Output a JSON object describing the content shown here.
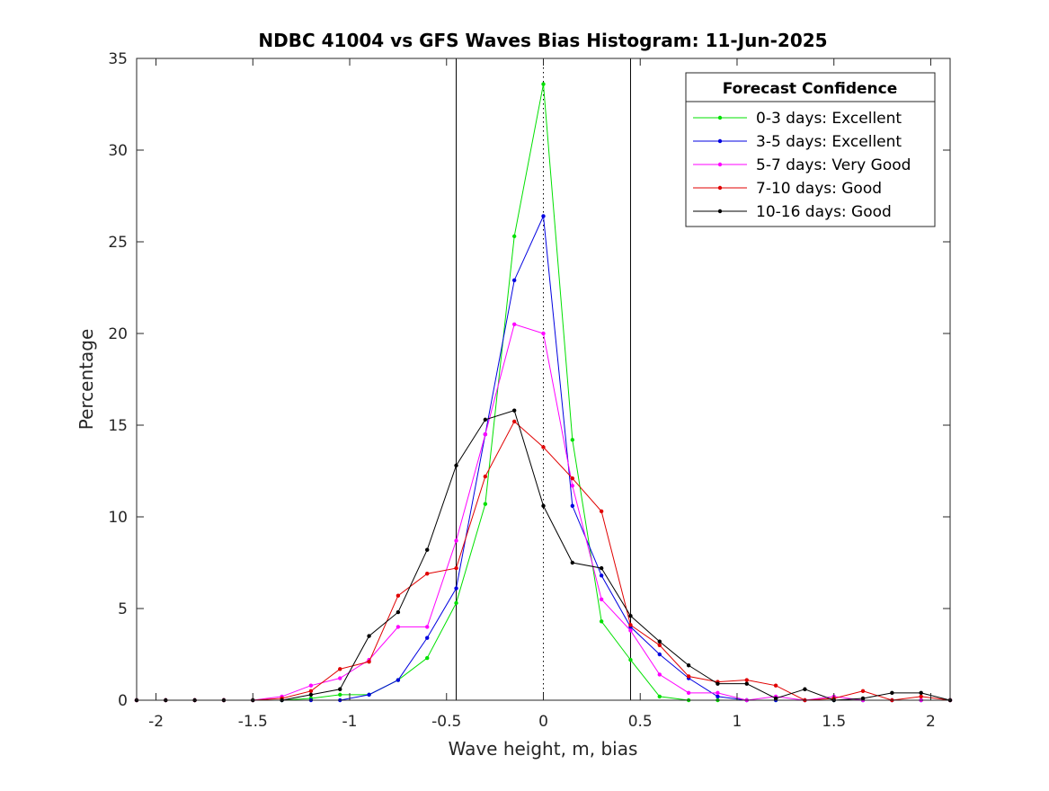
{
  "chart_data": {
    "type": "line",
    "title": "NDBC 41004 vs GFS Waves Bias Histogram: 11-Jun-2025",
    "xlabel": "Wave height, m, bias",
    "ylabel": "Percentage",
    "xlim": [
      -2.1,
      2.1
    ],
    "ylim": [
      0,
      35
    ],
    "xticks": [
      -2,
      -1.5,
      -1,
      -0.5,
      0,
      0.5,
      1,
      1.5,
      2
    ],
    "xtick_labels": [
      "-2",
      "-1.5",
      "-1",
      "-0.5",
      "0",
      "0.5",
      "1",
      "1.5",
      "2"
    ],
    "yticks": [
      0,
      5,
      10,
      15,
      20,
      25,
      30,
      35
    ],
    "ytick_labels": [
      "0",
      "5",
      "10",
      "15",
      "20",
      "25",
      "30",
      "35"
    ],
    "grid": false,
    "reference_lines": {
      "solid_x": [
        -0.45,
        0.45
      ],
      "dotted_x": [
        0
      ]
    },
    "legend": {
      "title": "Forecast Confidence",
      "placement": "top-right"
    },
    "x": [
      -2.1,
      -1.95,
      -1.8,
      -1.65,
      -1.5,
      -1.35,
      -1.2,
      -1.05,
      -0.9,
      -0.75,
      -0.6,
      -0.45,
      -0.3,
      -0.15,
      0,
      0.15,
      0.3,
      0.45,
      0.6,
      0.75,
      0.9,
      1.05,
      1.2,
      1.35,
      1.5,
      1.65,
      1.8,
      1.95,
      2.1
    ],
    "series": [
      {
        "name": "0-3 days: Excellent",
        "color": "#00e000",
        "values": [
          0,
          0,
          0,
          0,
          0,
          0,
          0.1,
          0.3,
          0.3,
          1.1,
          2.3,
          5.3,
          10.7,
          25.3,
          33.6,
          14.2,
          4.3,
          2.2,
          0.2,
          0,
          0,
          0,
          0,
          0,
          0,
          0,
          0,
          0,
          0
        ]
      },
      {
        "name": "3-5 days: Excellent",
        "color": "#0000e0",
        "values": [
          0,
          0,
          0,
          0,
          0,
          0,
          0,
          0,
          0.3,
          1.1,
          3.4,
          6.1,
          14.5,
          22.9,
          26.4,
          10.6,
          6.8,
          4.0,
          2.5,
          1.2,
          0.2,
          0,
          0,
          0,
          0,
          0,
          0,
          0,
          0
        ]
      },
      {
        "name": "5-7 days: Very Good",
        "color": "#ff00ff",
        "values": [
          0,
          0,
          0,
          0,
          0,
          0.2,
          0.8,
          1.2,
          2.2,
          4.0,
          4.0,
          8.7,
          14.5,
          20.5,
          20.0,
          11.7,
          5.5,
          3.8,
          1.4,
          0.4,
          0.4,
          0,
          0.2,
          0,
          0.2,
          0,
          0,
          0,
          0
        ]
      },
      {
        "name": "7-10 days: Good",
        "color": "#e00000",
        "values": [
          0,
          0,
          0,
          0,
          0,
          0.1,
          0.5,
          1.7,
          2.1,
          5.7,
          6.9,
          7.2,
          12.2,
          15.2,
          13.8,
          12.1,
          10.3,
          4.1,
          3.0,
          1.3,
          1.0,
          1.1,
          0.8,
          0,
          0.1,
          0.5,
          0,
          0.2,
          0
        ]
      },
      {
        "name": "10-16 days: Good",
        "color": "#000000",
        "values": [
          0,
          0,
          0,
          0,
          0,
          0,
          0.3,
          0.6,
          3.5,
          4.8,
          8.2,
          12.8,
          15.3,
          15.8,
          10.6,
          7.5,
          7.2,
          4.6,
          3.2,
          1.9,
          0.9,
          0.9,
          0.1,
          0.6,
          0,
          0.1,
          0.4,
          0.4,
          0
        ]
      }
    ]
  }
}
